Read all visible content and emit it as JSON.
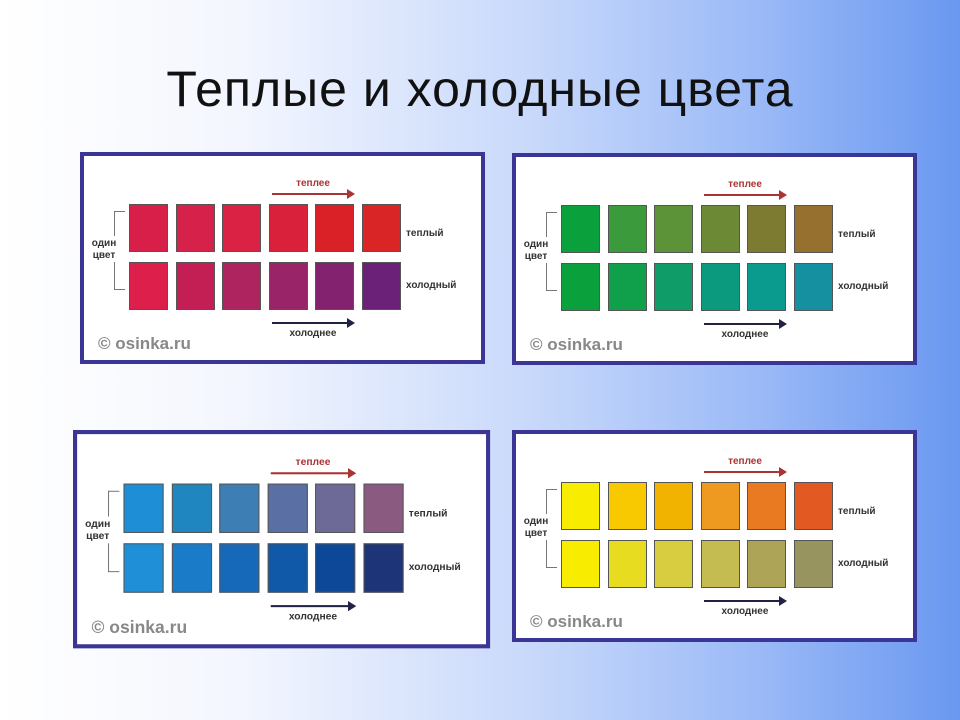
{
  "title": "Теплые и холодные цвета",
  "labels": {
    "warmer": "теплее",
    "cooler": "холоднее",
    "one_color": "один цвет",
    "warm": "теплый",
    "cold": "холодный",
    "logo": "© osinka.ru"
  },
  "panels": [
    {
      "name": "red",
      "warm": [
        "#d81f4a",
        "#d6214a",
        "#d92244",
        "#d9213c",
        "#da2128",
        "#d92525"
      ],
      "cold": [
        "#dc1f4b",
        "#c41f55",
        "#ae245e",
        "#9a2468",
        "#83226f",
        "#6c2178"
      ]
    },
    {
      "name": "green",
      "warm": [
        "#0aa03c",
        "#3a9a3c",
        "#5c9238",
        "#6c8a36",
        "#7d7a32",
        "#95702e"
      ],
      "cold": [
        "#0aa03c",
        "#10a04c",
        "#0f9c68",
        "#0c9a7e",
        "#0a9a8e",
        "#1590a0"
      ]
    },
    {
      "name": "blue",
      "warm": [
        "#1e8fd6",
        "#1f86c0",
        "#3d7eb4",
        "#5a70a4",
        "#6e6a98",
        "#8a5a80"
      ],
      "cold": [
        "#1f8fd8",
        "#1a7cc8",
        "#1668b8",
        "#1058a8",
        "#0d4898",
        "#1e3478"
      ]
    },
    {
      "name": "yellow",
      "warm": [
        "#f8ec00",
        "#f8c800",
        "#f2b200",
        "#ee9a20",
        "#ea7a22",
        "#e25a22"
      ],
      "cold": [
        "#f8ec00",
        "#e8dc20",
        "#d8cc40",
        "#c4bc50",
        "#aea458",
        "#989460"
      ]
    }
  ]
}
